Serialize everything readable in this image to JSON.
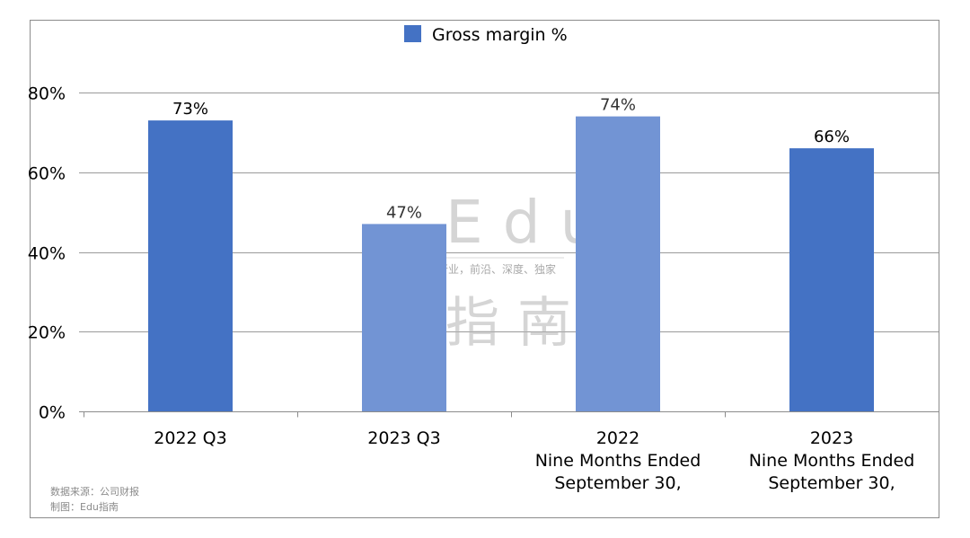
{
  "chart_data": {
    "type": "bar",
    "categories": [
      [
        "2022 Q3"
      ],
      [
        "2023 Q3"
      ],
      [
        "2022",
        "Nine Months Ended",
        "September 30,"
      ],
      [
        "2023",
        "Nine Months Ended",
        "September 30,"
      ]
    ],
    "series": [
      {
        "name": "Gross margin %",
        "values": [
          73,
          47,
          74,
          66
        ],
        "labels": [
          "73%",
          "47%",
          "74%",
          "66%"
        ]
      }
    ],
    "ylim": [
      0,
      80
    ],
    "yticks": [
      0,
      20,
      40,
      60,
      80
    ],
    "ytick_labels": [
      "0%",
      "20%",
      "40%",
      "60%",
      "80%"
    ],
    "grid": true,
    "legend_position": "top-center",
    "bar_colors": [
      "#4472c4",
      "#7294d4",
      "#7294d4",
      "#4472c4"
    ],
    "data_label_colors": [
      "#000000",
      "#333333",
      "#333333",
      "#000000"
    ]
  },
  "watermark": {
    "line1": "Edu",
    "line2": "教育行业，前沿、深度、独家",
    "line3": "指南"
  },
  "source": {
    "line1": "数据来源：公司财报",
    "line2": "制图：Edu指南"
  }
}
